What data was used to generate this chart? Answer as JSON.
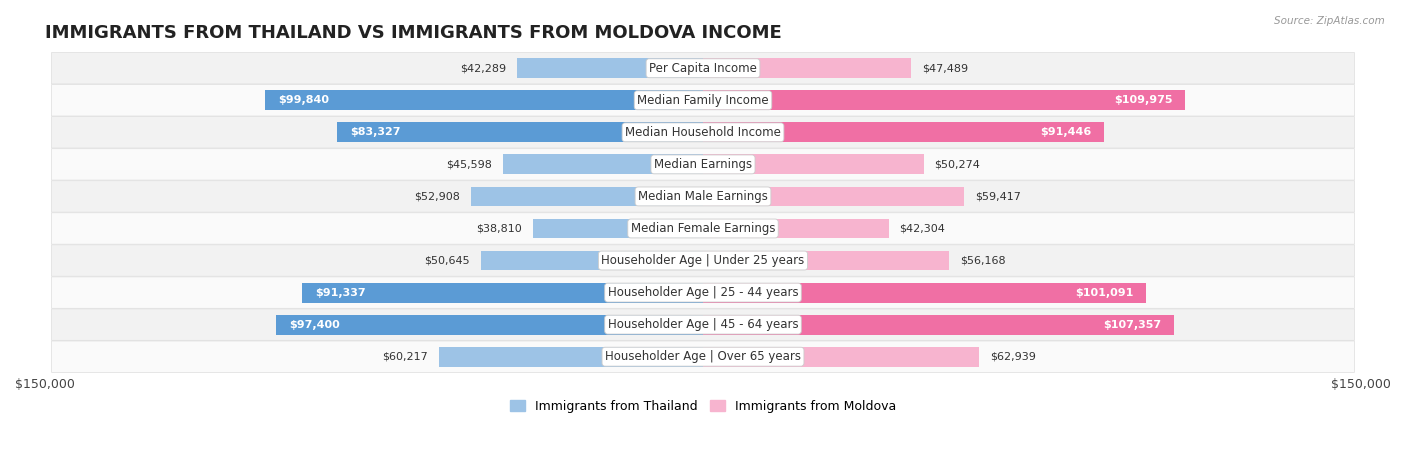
{
  "title": "IMMIGRANTS FROM THAILAND VS IMMIGRANTS FROM MOLDOVA INCOME",
  "source": "Source: ZipAtlas.com",
  "categories": [
    "Per Capita Income",
    "Median Family Income",
    "Median Household Income",
    "Median Earnings",
    "Median Male Earnings",
    "Median Female Earnings",
    "Householder Age | Under 25 years",
    "Householder Age | 25 - 44 years",
    "Householder Age | 45 - 64 years",
    "Householder Age | Over 65 years"
  ],
  "thailand_values": [
    42289,
    99840,
    83327,
    45598,
    52908,
    38810,
    50645,
    91337,
    97400,
    60217
  ],
  "moldova_values": [
    47489,
    109975,
    91446,
    50274,
    59417,
    42304,
    56168,
    101091,
    107357,
    62939
  ],
  "thailand_color_dark": "#5b9bd5",
  "thailand_color_light": "#9dc3e6",
  "moldova_color_dark": "#f06fa4",
  "moldova_color_light": "#f7b4cf",
  "thailand_label": "Immigrants from Thailand",
  "moldova_label": "Immigrants from Moldova",
  "xlim": 150000,
  "background_color": "#ffffff",
  "row_bg_odd": "#f2f2f2",
  "row_bg_even": "#fafafa",
  "title_fontsize": 13,
  "label_fontsize": 8.5,
  "value_fontsize": 8,
  "bar_height": 0.62,
  "th_large_threshold": 75000,
  "mo_large_threshold": 75000
}
